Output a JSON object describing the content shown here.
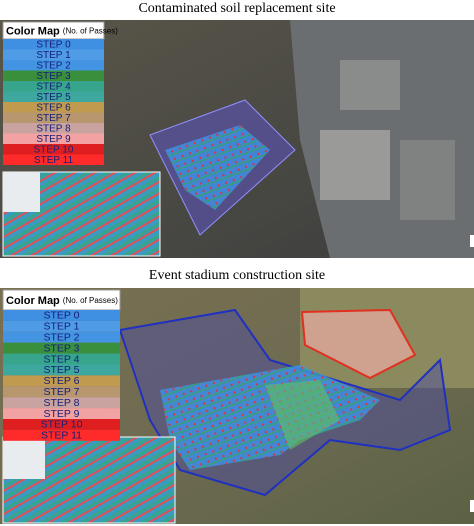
{
  "panels": [
    {
      "title": "Contaminated soil replacement site",
      "legend": {
        "title": "Color Map",
        "subtitle": "(No. of Passes)",
        "steps": [
          {
            "label": "STEP 0",
            "color": "#3f8fe2"
          },
          {
            "label": "STEP 1",
            "color": "#4f9be6"
          },
          {
            "label": "STEP 2",
            "color": "#4494e4"
          },
          {
            "label": "STEP 3",
            "color": "#3a8f3c"
          },
          {
            "label": "STEP 4",
            "color": "#36a58c"
          },
          {
            "label": "STEP 5",
            "color": "#3fa89e"
          },
          {
            "label": "STEP 6",
            "color": "#c09a4e"
          },
          {
            "label": "STEP 7",
            "color": "#b8966e"
          },
          {
            "label": "STEP 8",
            "color": "#c9a3a0"
          },
          {
            "label": "STEP 9",
            "color": "#f2a2a2"
          },
          {
            "label": "STEP 10",
            "color": "#df1f1f"
          },
          {
            "label": "STEP 11",
            "color": "#ff2a2a"
          }
        ]
      }
    },
    {
      "title": "Event stadium construction site",
      "legend": {
        "title": "Color Map",
        "subtitle": "(No. of Passes)",
        "steps": [
          {
            "label": "STEP 0",
            "color": "#3f8fe2"
          },
          {
            "label": "STEP 1",
            "color": "#4f9be6"
          },
          {
            "label": "STEP 2",
            "color": "#4494e4"
          },
          {
            "label": "STEP 3",
            "color": "#3a8f3c"
          },
          {
            "label": "STEP 4",
            "color": "#36a58c"
          },
          {
            "label": "STEP 5",
            "color": "#3fa89e"
          },
          {
            "label": "STEP 6",
            "color": "#c09a4e"
          },
          {
            "label": "STEP 7",
            "color": "#b8966e"
          },
          {
            "label": "STEP 8",
            "color": "#c9a3a0"
          },
          {
            "label": "STEP 9",
            "color": "#f2a2a2"
          },
          {
            "label": "STEP 10",
            "color": "#df1f1f"
          },
          {
            "label": "STEP 11",
            "color": "#ff2a2a"
          }
        ]
      }
    }
  ]
}
